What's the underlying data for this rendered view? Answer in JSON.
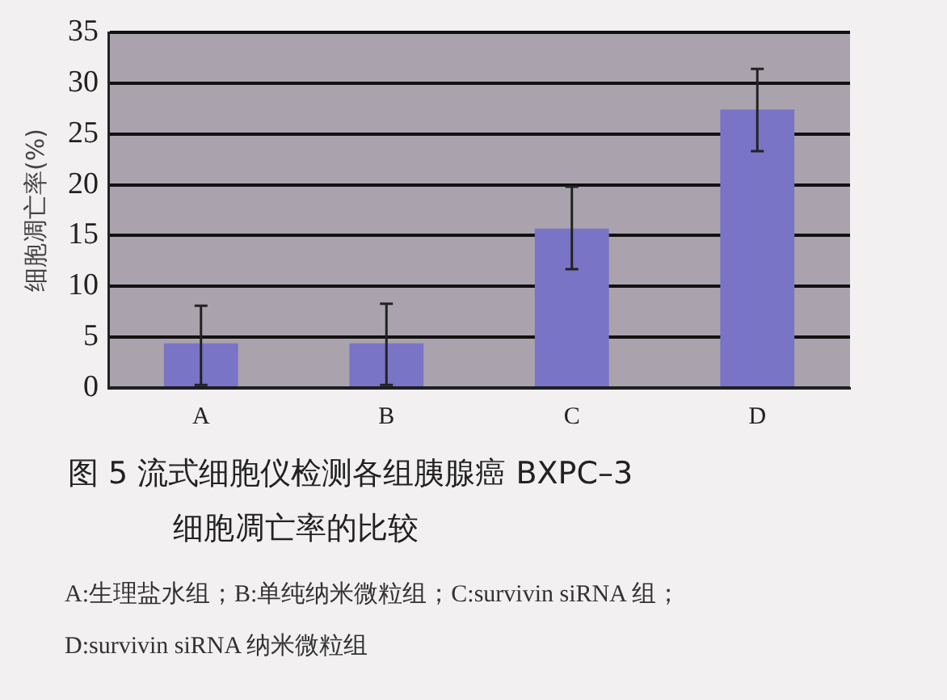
{
  "chart_data": {
    "type": "bar",
    "title": "图 5   流式细胞仪检测各组胰腺癌 BXPC–3 细胞凋亡率的比较",
    "ylabel": "细胞凋亡率(%)",
    "categories": [
      "A",
      "B",
      "C",
      "D"
    ],
    "values": [
      4.4,
      4.4,
      15.7,
      27.4
    ],
    "errors": [
      [
        0.3,
        8.1
      ],
      [
        0.3,
        8.3
      ],
      [
        11.7,
        19.8
      ],
      [
        23.3,
        31.4
      ]
    ],
    "color": "#7a74c6",
    "ylim": [
      0,
      35
    ],
    "yticks": [
      0,
      5,
      10,
      15,
      20,
      25,
      30,
      35
    ],
    "grid": "y",
    "annotations": [
      "A:生理盐水组；B:单纯纳米微粒组；C:survivin siRNA 组；",
      "D:survivin siRNA 纳米微粒组"
    ]
  }
}
